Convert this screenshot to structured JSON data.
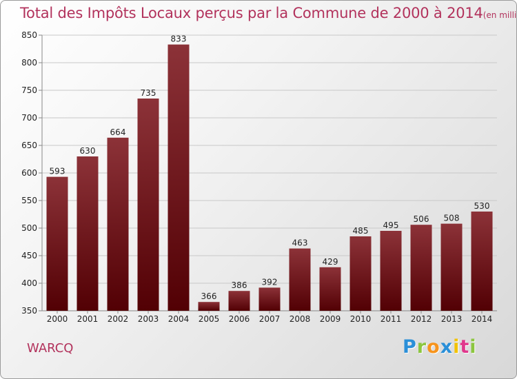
{
  "header": {
    "title": "Total des Impôts Locaux perçus par la Commune de 2000 à 2014",
    "unit": "(en milliers d'€)"
  },
  "commune": "WARCQ",
  "logo": {
    "letters": [
      "P",
      "r",
      "o",
      "x",
      "i",
      "t",
      "i"
    ],
    "colors": [
      "#2a8fd8",
      "#8cc63f",
      "#f7941d",
      "#2a8fd8",
      "#f2c200",
      "#e0388c",
      "#8cc63f"
    ]
  },
  "colors": {
    "bar_top": "#8c3238",
    "bar_bottom": "#520004",
    "grid": "#c8c8c8",
    "title": "#b2325c"
  },
  "chart_data": {
    "type": "bar",
    "title": "Total des Impôts Locaux perçus par la Commune de 2000 à 2014",
    "categories": [
      "2000",
      "2001",
      "2002",
      "2003",
      "2004",
      "2005",
      "2006",
      "2007",
      "2008",
      "2009",
      "2010",
      "2011",
      "2012",
      "2013",
      "2014"
    ],
    "values": [
      593,
      630,
      664,
      735,
      833,
      366,
      386,
      392,
      463,
      429,
      485,
      495,
      506,
      508,
      530
    ],
    "ylim": [
      350,
      850
    ],
    "yticks": [
      350,
      400,
      450,
      500,
      550,
      600,
      650,
      700,
      750,
      800,
      850
    ],
    "grid": true,
    "xlabel": "",
    "ylabel": ""
  }
}
